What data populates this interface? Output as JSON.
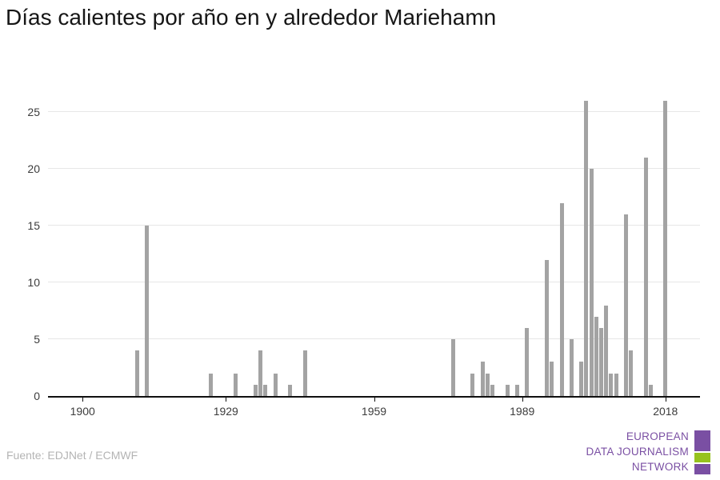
{
  "title": "Días calientes por año en y alrededor Mariehamn",
  "source": "Fuente: EDJNet / ECMWF",
  "logo": {
    "line1": "EUROPEAN",
    "line2": "DATA JOURNALISM",
    "line3": "NETWORK"
  },
  "colors": {
    "bar": "#a3a3a3",
    "grid": "#e7e7e7",
    "axis": "#101010",
    "tick_label": "#3c3c3c",
    "source_text": "#b4b4b4",
    "logo_purple": "#7a4fa3",
    "logo_green": "#96c21e"
  },
  "chart_data": {
    "type": "bar",
    "title": "Días calientes por año en y alrededor Mariehamn",
    "xlabel": "",
    "ylabel": "",
    "x_domain": [
      1893,
      2025
    ],
    "y_domain": [
      0,
      27
    ],
    "x_ticks": [
      "1900",
      "1929",
      "1959",
      "1989",
      "2018"
    ],
    "y_ticks": [
      0,
      5,
      10,
      15,
      20,
      25
    ],
    "grid": "horizontal",
    "legend": "none",
    "points": [
      {
        "year": 1911,
        "value": 4
      },
      {
        "year": 1913,
        "value": 15
      },
      {
        "year": 1926,
        "value": 2
      },
      {
        "year": 1931,
        "value": 2
      },
      {
        "year": 1935,
        "value": 1
      },
      {
        "year": 1936,
        "value": 4
      },
      {
        "year": 1937,
        "value": 1
      },
      {
        "year": 1939,
        "value": 2
      },
      {
        "year": 1942,
        "value": 1
      },
      {
        "year": 1945,
        "value": 4
      },
      {
        "year": 1975,
        "value": 5
      },
      {
        "year": 1979,
        "value": 2
      },
      {
        "year": 1981,
        "value": 3
      },
      {
        "year": 1982,
        "value": 2
      },
      {
        "year": 1983,
        "value": 1
      },
      {
        "year": 1986,
        "value": 1
      },
      {
        "year": 1988,
        "value": 1
      },
      {
        "year": 1990,
        "value": 6
      },
      {
        "year": 1994,
        "value": 12
      },
      {
        "year": 1995,
        "value": 3
      },
      {
        "year": 1997,
        "value": 17
      },
      {
        "year": 1999,
        "value": 5
      },
      {
        "year": 2001,
        "value": 3
      },
      {
        "year": 2002,
        "value": 26
      },
      {
        "year": 2003,
        "value": 20
      },
      {
        "year": 2004,
        "value": 7
      },
      {
        "year": 2005,
        "value": 6
      },
      {
        "year": 2006,
        "value": 8
      },
      {
        "year": 2007,
        "value": 2
      },
      {
        "year": 2008,
        "value": 2
      },
      {
        "year": 2010,
        "value": 16
      },
      {
        "year": 2011,
        "value": 4
      },
      {
        "year": 2014,
        "value": 21
      },
      {
        "year": 2015,
        "value": 1
      },
      {
        "year": 2018,
        "value": 26
      }
    ]
  }
}
